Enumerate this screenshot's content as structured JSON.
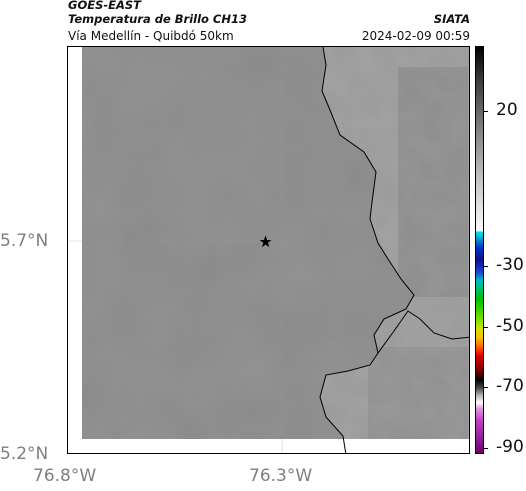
{
  "header": {
    "satellite": "GOES-EAST",
    "product": "Temperatura de Brillo CH13",
    "region": "Vía Medellín - Quibdó 50km",
    "agency": "SIATA",
    "datetime": "2024-02-09 00:59"
  },
  "axes": {
    "y_labels": [
      "5.7°N",
      "5.2°N"
    ],
    "x_labels": [
      "76.8°W",
      "76.3°W"
    ]
  },
  "colorbar": {
    "tick_labels": [
      "20",
      "-30",
      "-50",
      "-70",
      "-90"
    ]
  },
  "map": {
    "marker": "star-icon",
    "colors": {
      "cloud_gray": "#8c8c8c",
      "terrain_gray": "#9a9a9a",
      "coastline": "#000000"
    }
  }
}
